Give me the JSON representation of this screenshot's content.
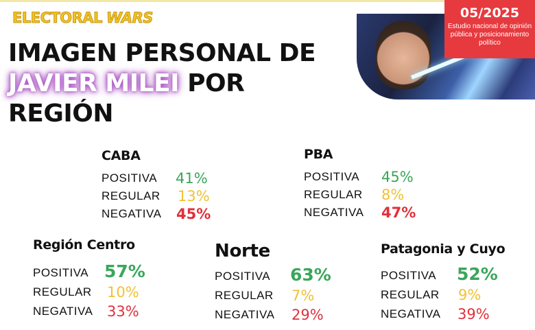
{
  "header": {
    "brand_part1": "ELECTORAL",
    "brand_part2": "WARS",
    "title_line1": "IMAGEN PERSONAL DE",
    "title_highlight": "JAVIER MILEI",
    "title_line2_rest": "POR",
    "title_line3": "REGIÓN"
  },
  "badge": {
    "date": "05/2025",
    "subtitle": "Estudio nacional de opinión pública y posicionamiento político",
    "color": "#e63a3f"
  },
  "labels": {
    "positive": "POSITIVA",
    "regular": "REGULAR",
    "negative": "NEGATIVA"
  },
  "colors": {
    "positive": "#3aa65a",
    "regular": "#f0c233",
    "negative": "#e0303a"
  },
  "regions": [
    {
      "name": "CABA",
      "positive": "41%",
      "regular": "13%",
      "negative": "45%"
    },
    {
      "name": "PBA",
      "positive": "45%",
      "regular": "8%",
      "negative": "47%"
    },
    {
      "name": "Región Centro",
      "positive": "57%",
      "regular": "10%",
      "negative": "33%"
    },
    {
      "name": "Norte",
      "positive": "63%",
      "regular": "7%",
      "negative": "29%"
    },
    {
      "name": "Patagonia y Cuyo",
      "positive": "52%",
      "regular": "9%",
      "negative": "39%"
    }
  ]
}
